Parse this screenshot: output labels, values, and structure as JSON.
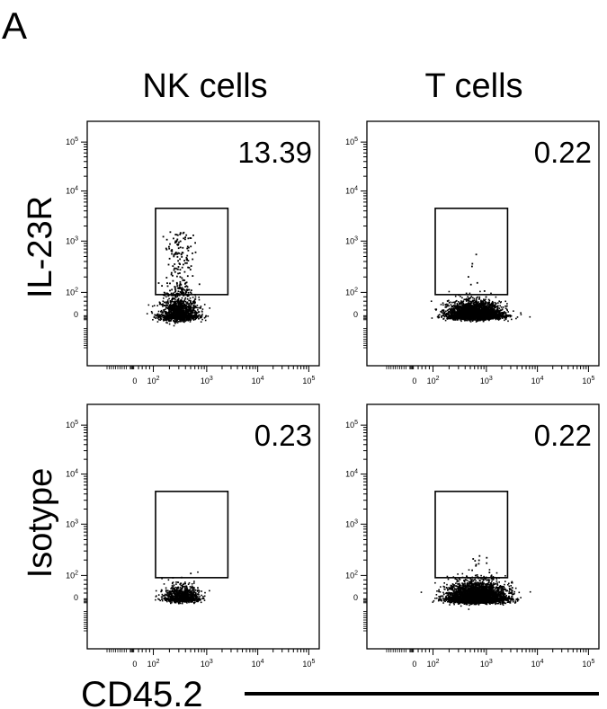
{
  "figure": {
    "panel_letter": "A",
    "column_headers": [
      "NK cells",
      "T cells"
    ],
    "row_labels": [
      "IL-23R",
      "Isotype"
    ],
    "x_axis_label": "CD45.2"
  },
  "chart_data": [
    {
      "type": "scatter",
      "column": "NK cells",
      "row": "IL-23R",
      "gate_percent": "13.39",
      "xlim": [
        -100,
        100000
      ],
      "ylim": [
        -100,
        100000
      ],
      "x_scale": "biexponential",
      "y_scale": "biexponential",
      "x_ticks": [
        "0",
        "10^2",
        "10^3",
        "10^4",
        "10^5"
      ],
      "y_ticks": [
        "0",
        "10^2",
        "10^3",
        "10^4",
        "10^5"
      ],
      "gate": {
        "x_range": [
          110,
          2600
        ],
        "y_range": [
          90,
          4500
        ]
      },
      "population": {
        "x_center": 300,
        "y_center": 0,
        "n_points": 1400,
        "x_spread": 0.4,
        "y_spread": 40
      },
      "positive_events": {
        "n_points": 200,
        "x_center": 300,
        "y_range": [
          90,
          1600
        ]
      }
    },
    {
      "type": "scatter",
      "column": "T cells",
      "row": "IL-23R",
      "gate_percent": "0.22",
      "xlim": [
        -100,
        100000
      ],
      "ylim": [
        -100,
        100000
      ],
      "x_scale": "biexponential",
      "y_scale": "biexponential",
      "x_ticks": [
        "0",
        "10^2",
        "10^3",
        "10^4",
        "10^5"
      ],
      "y_ticks": [
        "0",
        "10^2",
        "10^3",
        "10^4",
        "10^5"
      ],
      "gate": {
        "x_range": [
          110,
          2600
        ],
        "y_range": [
          90,
          4500
        ]
      },
      "population": {
        "x_center": 600,
        "y_center": 0,
        "n_points": 3500,
        "x_spread": 0.55,
        "y_spread": 30
      },
      "positive_events": {
        "n_points": 8,
        "x_center": 550,
        "y_range": [
          90,
          600
        ]
      }
    },
    {
      "type": "scatter",
      "column": "NK cells",
      "row": "Isotype",
      "gate_percent": "0.23",
      "xlim": [
        -100,
        100000
      ],
      "ylim": [
        -100,
        100000
      ],
      "x_scale": "biexponential",
      "y_scale": "biexponential",
      "x_ticks": [
        "0",
        "10^2",
        "10^3",
        "10^4",
        "10^5"
      ],
      "y_ticks": [
        "0",
        "10^2",
        "10^3",
        "10^4",
        "10^5"
      ],
      "gate": {
        "x_range": [
          110,
          2600
        ],
        "y_range": [
          90,
          4500
        ]
      },
      "population": {
        "x_center": 330,
        "y_center": 0,
        "n_points": 1100,
        "x_spread": 0.35,
        "y_spread": 28
      },
      "positive_events": {
        "n_points": 3,
        "x_center": 330,
        "y_range": [
          90,
          120
        ]
      }
    },
    {
      "type": "scatter",
      "column": "T cells",
      "row": "Isotype",
      "gate_percent": "0.22",
      "xlim": [
        -100,
        100000
      ],
      "ylim": [
        -100,
        100000
      ],
      "x_scale": "biexponential",
      "y_scale": "biexponential",
      "x_ticks": [
        "0",
        "10^2",
        "10^3",
        "10^4",
        "10^5"
      ],
      "y_ticks": [
        "0",
        "10^2",
        "10^3",
        "10^4",
        "10^5"
      ],
      "gate": {
        "x_range": [
          110,
          2600
        ],
        "y_range": [
          90,
          4500
        ]
      },
      "population": {
        "x_center": 650,
        "y_center": 0,
        "n_points": 3800,
        "x_spread": 0.6,
        "y_spread": 35
      },
      "positive_events": {
        "n_points": 20,
        "x_center": 650,
        "y_range": [
          90,
          260
        ]
      }
    }
  ]
}
